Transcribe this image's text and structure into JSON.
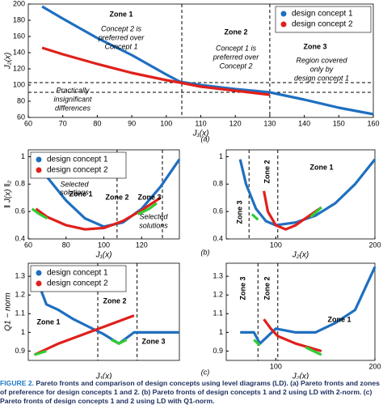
{
  "chart_data": [
    {
      "type": "line",
      "xlabel": "J₁(x)",
      "ylabel": "J₂(x)",
      "panel": "(a)",
      "xlim": [
        60,
        160
      ],
      "xticks": [
        60,
        70,
        80,
        90,
        100,
        110,
        120,
        130,
        140,
        150,
        160
      ],
      "ylim": [
        60,
        200
      ],
      "yticks": [
        60,
        80,
        100,
        120,
        140,
        160,
        180,
        200
      ],
      "legend": "upper right",
      "vlines": [
        104.5,
        130
      ],
      "hlines": [
        103,
        91
      ],
      "series": [
        {
          "name": "design concept 1",
          "color": "#1f6fc0",
          "x": [
            64,
            70,
            80,
            90,
            100,
            104,
            110,
            120,
            130,
            140,
            150,
            160
          ],
          "values": [
            197,
            182,
            158,
            137,
            113,
            104,
            100,
            95,
            91,
            82,
            72,
            64
          ]
        },
        {
          "name": "design concept 2",
          "color": "#e0201b",
          "x": [
            64,
            70,
            80,
            90,
            100,
            104,
            110,
            120,
            130
          ],
          "values": [
            146,
            138,
            126,
            115,
            106,
            103,
            98,
            93,
            88
          ]
        }
      ],
      "annotations": [
        "Zone 1",
        "Concept 2 is",
        "preferred over",
        "Concept 1",
        "Zone 2",
        "Concept 1 is",
        "preferred over",
        "Concept 2",
        "Zone 3",
        "Region covered",
        "only by",
        "design concept 1",
        "Practically",
        "insignificant",
        "differences"
      ]
    },
    {
      "type": "line",
      "xlabel": "J₁(x)",
      "ylabel": "‖ J(x) ‖₂",
      "panel": "(b)",
      "xlim": [
        60,
        140
      ],
      "xticks": [
        60,
        80,
        100,
        120
      ],
      "ylim": [
        0.4,
        1.05
      ],
      "yticks": [
        0.4,
        0.6,
        0.8,
        1
      ],
      "legend": "upper left",
      "vlines": [
        107,
        131
      ],
      "series": [
        {
          "name": "design concept 1",
          "color": "#1f6fc0",
          "x": [
            64,
            70,
            80,
            90,
            100,
            110,
            120,
            130,
            140
          ],
          "values": [
            0.98,
            0.85,
            0.68,
            0.55,
            0.49,
            0.52,
            0.62,
            0.78,
            0.98
          ]
        },
        {
          "name": "design concept 2",
          "color": "#e0201b",
          "x": [
            64,
            70,
            80,
            90,
            100,
            110,
            120,
            130
          ],
          "values": [
            0.62,
            0.56,
            0.5,
            0.47,
            0.48,
            0.53,
            0.61,
            0.7
          ]
        },
        {
          "color": "#33cc33",
          "x": [
            62,
            66,
            70,
            110,
            118,
            124,
            128
          ],
          "values": [
            0.62,
            0.58,
            0.55,
            null,
            0.58,
            0.62,
            0.66
          ]
        }
      ],
      "annotations": [
        "Zone 1",
        "Zone 2",
        "Zone 3",
        "Selected",
        "solutions",
        "Selected",
        "solutions"
      ]
    },
    {
      "type": "line",
      "xlabel": "J₂(x)",
      "xlim": [
        50,
        200
      ],
      "xticks": [
        100,
        200
      ],
      "ylim": [
        0.4,
        1.05
      ],
      "yticks": [
        0.4,
        0.6,
        0.8,
        1
      ],
      "vlines": [
        73,
        102
      ],
      "series": [
        {
          "name": "design concept 1",
          "color": "#1f6fc0",
          "x": [
            64,
            70,
            80,
            90,
            100,
            120,
            140,
            160,
            180,
            200
          ],
          "values": [
            0.98,
            0.8,
            0.62,
            0.53,
            0.5,
            0.52,
            0.57,
            0.66,
            0.8,
            0.98
          ]
        },
        {
          "name": "design concept 2",
          "color": "#e0201b",
          "x": [
            88,
            92,
            100,
            110,
            120,
            130,
            146
          ],
          "values": [
            0.75,
            0.6,
            0.5,
            0.47,
            0.5,
            0.55,
            0.63
          ]
        },
        {
          "color": "#33cc33",
          "x": [
            76,
            82,
            90,
            135,
            146
          ],
          "values": [
            0.58,
            0.54,
            null,
            0.56,
            0.63
          ]
        }
      ],
      "annotations": [
        "Zone 3",
        "Zone 2",
        "Zone 1"
      ]
    },
    {
      "type": "line",
      "xlabel": "J₁(x)",
      "ylabel": "Q1 − norm",
      "panel": "(c)",
      "xlim": [
        60,
        160
      ],
      "ylim": [
        0.85,
        1.37
      ],
      "yticks": [
        0.9,
        1,
        1.1,
        1.2,
        1.3
      ],
      "legend": "upper left",
      "vlines": [
        106,
        132
      ],
      "series": [
        {
          "name": "design concept 1",
          "color": "#1f6fc0",
          "x": [
            64,
            72,
            80,
            90,
            100,
            110,
            120,
            125,
            130,
            140,
            160
          ],
          "values": [
            1.32,
            1.15,
            1.12,
            1.07,
            1.03,
            0.99,
            0.94,
            0.97,
            1.0,
            1.0,
            1.0
          ]
        },
        {
          "name": "design concept 2",
          "color": "#e0201b",
          "x": [
            64,
            80,
            100,
            110,
            130
          ],
          "values": [
            0.88,
            0.94,
            1.0,
            1.03,
            1.09
          ]
        },
        {
          "color": "#33cc33",
          "x": [
            64,
            72,
            90,
            115,
            120,
            125
          ],
          "values": [
            0.88,
            0.9,
            null,
            0.96,
            0.94,
            0.96
          ]
        }
      ],
      "annotations": [
        "Zone 1",
        "Zone 2",
        "Zone 3"
      ]
    },
    {
      "type": "line",
      "xlabel": "J₂(x)",
      "xlim": [
        50,
        200
      ],
      "xticks": [
        100,
        200
      ],
      "ylim": [
        0.85,
        1.37
      ],
      "yticks": [
        0.9,
        1,
        1.1,
        1.2,
        1.3
      ],
      "vlines": [
        82,
        102
      ],
      "series": [
        {
          "name": "design concept 1",
          "color": "#1f6fc0",
          "x": [
            64,
            78,
            84,
            100,
            120,
            140,
            160,
            180,
            200
          ],
          "values": [
            1.0,
            1.0,
            0.94,
            1.02,
            1.0,
            1.0,
            1.05,
            1.12,
            1.35
          ]
        },
        {
          "name": "design concept 2",
          "color": "#e0201b",
          "x": [
            88,
            95,
            102,
            120,
            146
          ],
          "values": [
            1.07,
            1.02,
            0.98,
            0.94,
            0.9
          ]
        },
        {
          "color": "#33cc33",
          "x": [
            78,
            84,
            100,
            130,
            146
          ],
          "values": [
            0.96,
            0.93,
            null,
            0.92,
            0.88
          ]
        }
      ],
      "annotations": [
        "Zone 3",
        "Zone 2",
        "Zone 1"
      ]
    }
  ],
  "caption": {
    "label": "FIGURE 2.",
    "text": "Pareto fronts and comparison of design concepts using level diagrams (LD). (a) Pareto fronts and zones of preference for design concepts 1 and 2. (b) Pareto fronts of design concepts 1 and 2 using LD with 2-norm. (c) Pareto fronts of design concepts 1 and 2 using LD with Q1-norm."
  }
}
